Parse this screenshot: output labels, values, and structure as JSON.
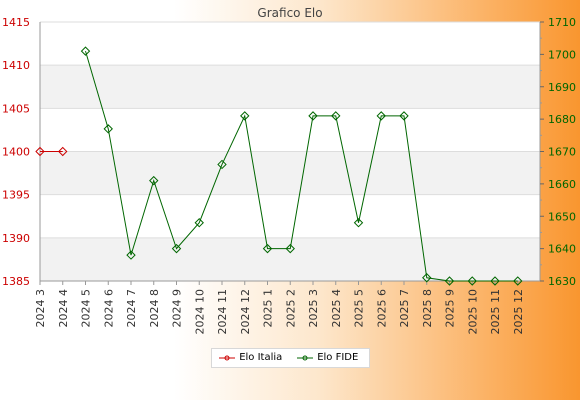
{
  "chart_data": {
    "type": "line",
    "title": "Grafico Elo",
    "categories": [
      "2024 3",
      "2024 4",
      "2024 5",
      "2024 6",
      "2024 7",
      "2024 8",
      "2024 9",
      "2024 10",
      "2024 11",
      "2024 12",
      "2025 1",
      "2025 2",
      "2025 3",
      "2025 4",
      "2025 5",
      "2025 6",
      "2025 7",
      "2025 8",
      "2025 9",
      "2025 10",
      "2025 11",
      "2025 12"
    ],
    "left_axis": {
      "min": 1385,
      "max": 1415,
      "ticks": [
        1385,
        1390,
        1395,
        1400,
        1405,
        1410,
        1415
      ],
      "color": "#cc0000"
    },
    "right_axis": {
      "min": 1630,
      "max": 1710,
      "ticks": [
        1630,
        1640,
        1650,
        1660,
        1670,
        1680,
        1690,
        1700,
        1710
      ],
      "color": "#006600"
    },
    "series": [
      {
        "name": "Elo Italia",
        "axis": "left",
        "color": "#cc0000",
        "values": [
          1400,
          1400,
          null,
          null,
          null,
          null,
          null,
          null,
          null,
          null,
          null,
          null,
          null,
          null,
          null,
          null,
          null,
          null,
          null,
          null,
          null,
          null
        ]
      },
      {
        "name": "Elo FIDE",
        "axis": "right",
        "color": "#006600",
        "values": [
          null,
          null,
          1701,
          1677,
          1638,
          1661,
          1640,
          1648,
          1666,
          1681,
          1640,
          1640,
          1681,
          1681,
          1648,
          1681,
          1681,
          1631,
          1630,
          1630,
          1630,
          1630
        ]
      }
    ],
    "grid": true,
    "legend_position": "bottom-center"
  }
}
